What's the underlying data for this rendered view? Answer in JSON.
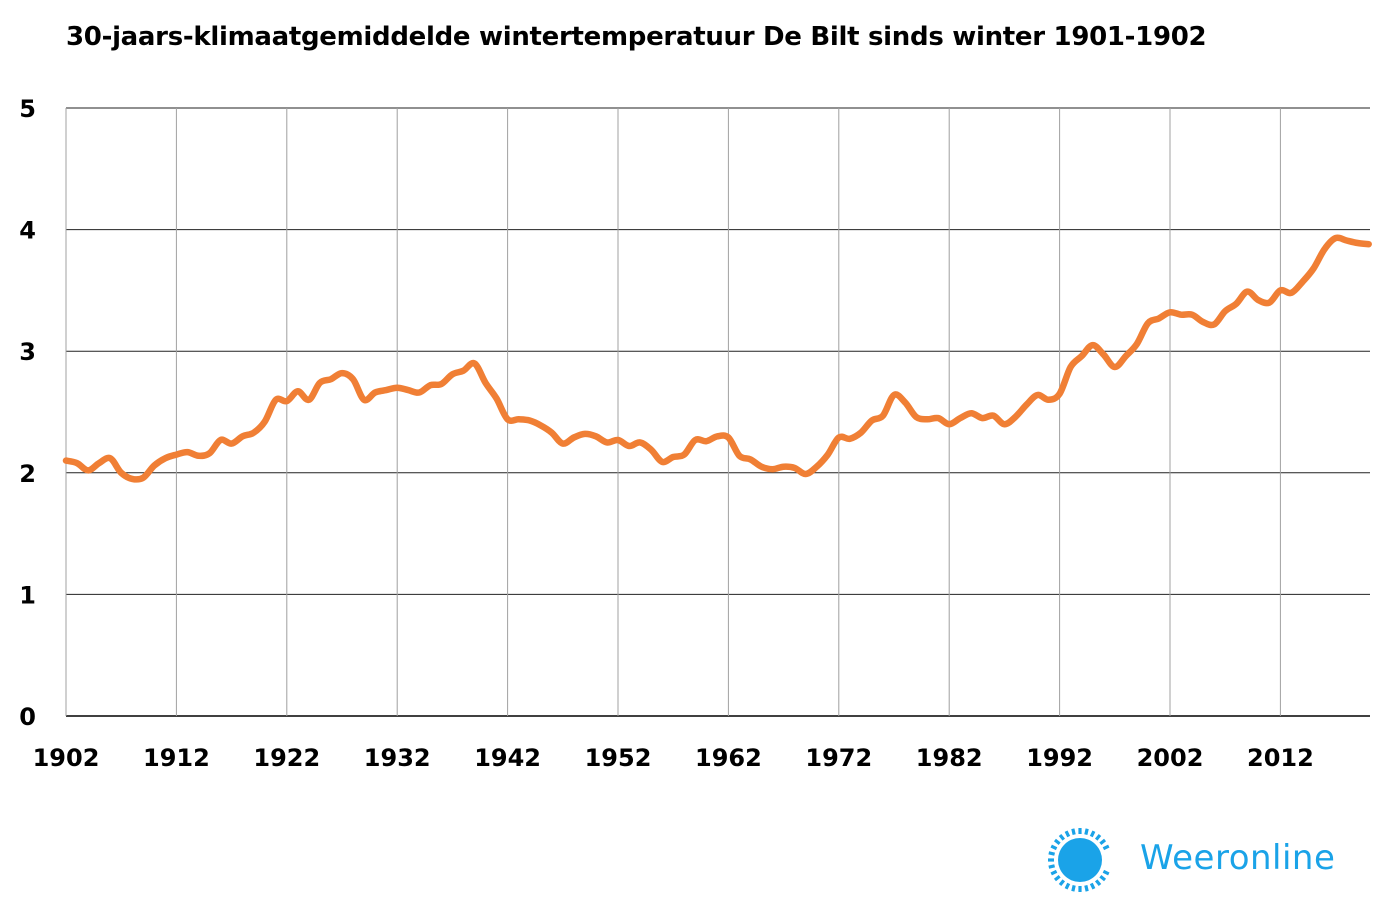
{
  "chart_data": {
    "type": "line",
    "title": "30-jaars-klimaatgemiddelde wintertemperatuur De Bilt sinds winter 1901-1902",
    "xlabel": "",
    "ylabel": "",
    "xlim": [
      1902,
      2020
    ],
    "ylim": [
      0,
      5
    ],
    "x_ticks": [
      "1902",
      "1912",
      "1922",
      "1932",
      "1942",
      "1952",
      "1962",
      "1972",
      "1982",
      "1992",
      "2002",
      "2012"
    ],
    "y_ticks": [
      "0",
      "1",
      "2",
      "3",
      "4",
      "5"
    ],
    "grid": true,
    "line_color": "#f07f35",
    "series": [
      {
        "x": [
          1902,
          1903,
          1904,
          1905,
          1906,
          1907,
          1908,
          1909,
          1910,
          1911,
          1912,
          1913,
          1914,
          1915,
          1916,
          1917,
          1918,
          1919,
          1920,
          1921,
          1922,
          1923,
          1924,
          1925,
          1926,
          1927,
          1928,
          1929,
          1930,
          1931,
          1932,
          1933,
          1934,
          1935,
          1936,
          1937,
          1938,
          1939,
          1940,
          1941,
          1942,
          1943,
          1944,
          1945,
          1946,
          1947,
          1948,
          1949,
          1950,
          1951,
          1952,
          1953,
          1954,
          1955,
          1956,
          1957,
          1958,
          1959,
          1960,
          1961,
          1962,
          1963,
          1964,
          1965,
          1966,
          1967,
          1968,
          1969,
          1970,
          1971,
          1972,
          1973,
          1974,
          1975,
          1976,
          1977,
          1978,
          1979,
          1980,
          1981,
          1982,
          1983,
          1984,
          1985,
          1986,
          1987,
          1988,
          1989,
          1990,
          1991,
          1992,
          1993,
          1994,
          1995,
          1996,
          1997,
          1998,
          1999,
          2000,
          2001,
          2002,
          2003,
          2004,
          2005,
          2006,
          2007,
          2008,
          2009,
          2010,
          2011,
          2012,
          2013,
          2014,
          2015,
          2016,
          2017,
          2018,
          2019,
          2020
        ],
        "values": [
          2.1,
          2.08,
          2.02,
          2.08,
          2.12,
          2.0,
          1.95,
          1.96,
          2.06,
          2.12,
          2.15,
          2.17,
          2.14,
          2.16,
          2.27,
          2.24,
          2.3,
          2.33,
          2.42,
          2.6,
          2.59,
          2.67,
          2.6,
          2.74,
          2.77,
          2.82,
          2.77,
          2.6,
          2.66,
          2.68,
          2.7,
          2.68,
          2.66,
          2.72,
          2.73,
          2.81,
          2.84,
          2.9,
          2.74,
          2.61,
          2.44,
          2.44,
          2.43,
          2.39,
          2.33,
          2.24,
          2.29,
          2.32,
          2.3,
          2.25,
          2.27,
          2.22,
          2.25,
          2.19,
          2.09,
          2.13,
          2.15,
          2.27,
          2.26,
          2.3,
          2.29,
          2.14,
          2.11,
          2.05,
          2.03,
          2.05,
          2.04,
          1.99,
          2.05,
          2.15,
          2.29,
          2.28,
          2.33,
          2.43,
          2.47,
          2.64,
          2.58,
          2.46,
          2.44,
          2.45,
          2.4,
          2.45,
          2.49,
          2.45,
          2.47,
          2.4,
          2.46,
          2.56,
          2.64,
          2.6,
          2.65,
          2.87,
          2.96,
          3.05,
          2.97,
          2.87,
          2.96,
          3.06,
          3.23,
          3.27,
          3.32,
          3.3,
          3.3,
          3.24,
          3.22,
          3.33,
          3.39,
          3.49,
          3.42,
          3.4,
          3.5,
          3.48,
          3.57,
          3.68,
          3.84,
          3.93,
          3.91,
          3.89,
          3.88
        ]
      }
    ]
  },
  "brand": {
    "name": "Weeronline",
    "color": "#1aa3e8",
    "icon": "sun-icon"
  }
}
